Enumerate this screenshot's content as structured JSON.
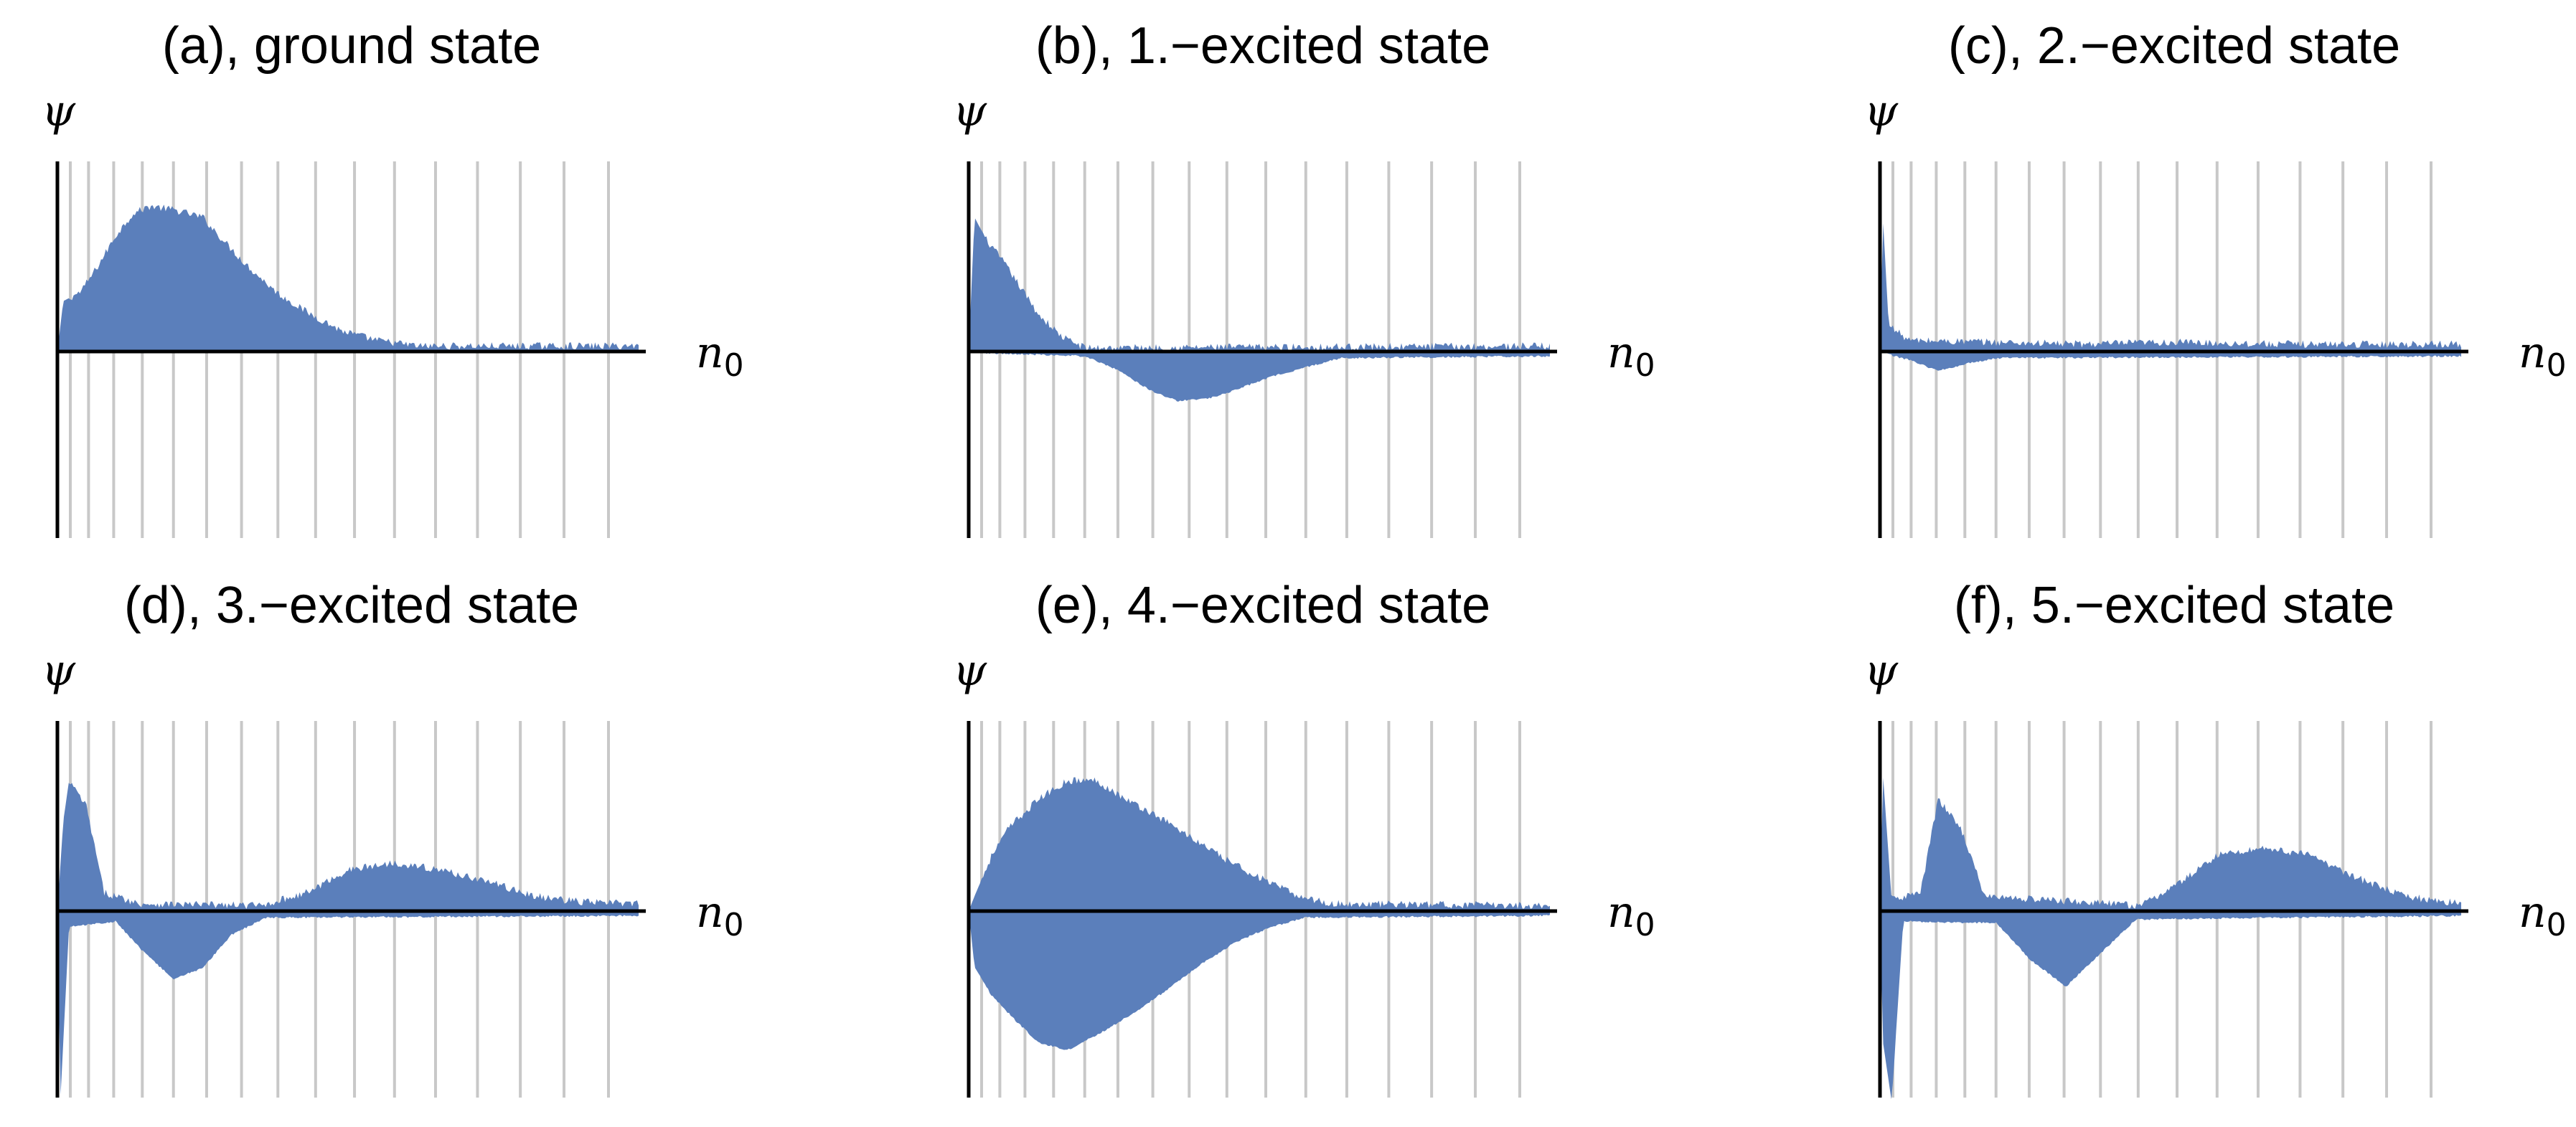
{
  "colors": {
    "fill": "#5b7fbb",
    "gridline": "#c8c8c8",
    "axis": "#000000"
  },
  "chart_data": [
    {
      "type": "area",
      "title": "(a), ground state",
      "ylabel": "ψ",
      "xlabel": "n",
      "xlabel_sub": "0",
      "ylim": [
        -1,
        1
      ],
      "grid_x": true,
      "gridline_count": 16,
      "envelope": {
        "positive": [
          {
            "x": 0.0,
            "y": 0.0
          },
          {
            "x": 0.01,
            "y": 0.27
          },
          {
            "x": 0.04,
            "y": 0.32
          },
          {
            "x": 0.07,
            "y": 0.46
          },
          {
            "x": 0.1,
            "y": 0.62
          },
          {
            "x": 0.13,
            "y": 0.74
          },
          {
            "x": 0.16,
            "y": 0.78
          },
          {
            "x": 0.2,
            "y": 0.76
          },
          {
            "x": 0.25,
            "y": 0.72
          },
          {
            "x": 0.29,
            "y": 0.58
          },
          {
            "x": 0.33,
            "y": 0.45
          },
          {
            "x": 0.38,
            "y": 0.31
          },
          {
            "x": 0.43,
            "y": 0.21
          },
          {
            "x": 0.49,
            "y": 0.11
          },
          {
            "x": 0.55,
            "y": 0.06
          },
          {
            "x": 0.62,
            "y": 0.03
          },
          {
            "x": 1.0,
            "y": 0.03
          }
        ],
        "negative": [
          {
            "x": 0.0,
            "y": 0.0
          },
          {
            "x": 1.0,
            "y": 0.0
          }
        ]
      }
    },
    {
      "type": "area",
      "title": "(b), 1.−excited state",
      "ylabel": "ψ",
      "xlabel": "n",
      "xlabel_sub": "0",
      "ylim": [
        -1,
        1
      ],
      "grid_x": true,
      "gridline_count": 16,
      "envelope": {
        "positive": [
          {
            "x": 0.0,
            "y": 0.0
          },
          {
            "x": 0.01,
            "y": 0.72
          },
          {
            "x": 0.03,
            "y": 0.6
          },
          {
            "x": 0.06,
            "y": 0.48
          },
          {
            "x": 0.09,
            "y": 0.34
          },
          {
            "x": 0.12,
            "y": 0.2
          },
          {
            "x": 0.16,
            "y": 0.08
          },
          {
            "x": 0.2,
            "y": 0.02
          },
          {
            "x": 1.0,
            "y": 0.03
          }
        ],
        "negative": [
          {
            "x": 0.0,
            "y": 0.0
          },
          {
            "x": 0.2,
            "y": -0.02
          },
          {
            "x": 0.26,
            "y": -0.1
          },
          {
            "x": 0.31,
            "y": -0.2
          },
          {
            "x": 0.36,
            "y": -0.26
          },
          {
            "x": 0.41,
            "y": -0.25
          },
          {
            "x": 0.46,
            "y": -0.2
          },
          {
            "x": 0.52,
            "y": -0.13
          },
          {
            "x": 0.58,
            "y": -0.08
          },
          {
            "x": 0.64,
            "y": -0.03
          },
          {
            "x": 1.0,
            "y": -0.02
          }
        ]
      }
    },
    {
      "type": "area",
      "title": "(c), 2.−excited state",
      "ylabel": "ψ",
      "xlabel": "n",
      "xlabel_sub": "0",
      "ylim": [
        -1,
        1
      ],
      "grid_x": true,
      "gridline_count": 16,
      "envelope": {
        "positive": [
          {
            "x": 0.0,
            "y": 0.0
          },
          {
            "x": 0.005,
            "y": 0.72
          },
          {
            "x": 0.015,
            "y": 0.14
          },
          {
            "x": 0.05,
            "y": 0.06
          },
          {
            "x": 0.35,
            "y": 0.04
          },
          {
            "x": 0.5,
            "y": 0.05
          },
          {
            "x": 0.7,
            "y": 0.04
          },
          {
            "x": 1.0,
            "y": 0.04
          }
        ],
        "negative": [
          {
            "x": 0.0,
            "y": 0.0
          },
          {
            "x": 0.05,
            "y": -0.04
          },
          {
            "x": 0.1,
            "y": -0.1
          },
          {
            "x": 0.15,
            "y": -0.06
          },
          {
            "x": 0.2,
            "y": -0.03
          },
          {
            "x": 1.0,
            "y": -0.02
          }
        ]
      }
    },
    {
      "type": "area",
      "title": "(d), 3.−excited state",
      "ylabel": "ψ",
      "xlabel": "n",
      "xlabel_sub": "0",
      "ylim": [
        -1,
        1
      ],
      "grid_x": true,
      "gridline_count": 16,
      "envelope": {
        "positive": [
          {
            "x": 0.0,
            "y": 0.0
          },
          {
            "x": 0.01,
            "y": 0.48
          },
          {
            "x": 0.02,
            "y": 0.7
          },
          {
            "x": 0.05,
            "y": 0.56
          },
          {
            "x": 0.08,
            "y": 0.1
          },
          {
            "x": 0.14,
            "y": 0.04
          },
          {
            "x": 0.35,
            "y": 0.03
          },
          {
            "x": 0.43,
            "y": 0.1
          },
          {
            "x": 0.5,
            "y": 0.22
          },
          {
            "x": 0.58,
            "y": 0.26
          },
          {
            "x": 0.66,
            "y": 0.22
          },
          {
            "x": 0.74,
            "y": 0.16
          },
          {
            "x": 0.82,
            "y": 0.08
          },
          {
            "x": 0.9,
            "y": 0.05
          },
          {
            "x": 1.0,
            "y": 0.04
          }
        ],
        "negative": [
          {
            "x": 0.0,
            "y": 0.0
          },
          {
            "x": 0.005,
            "y": -1.02
          },
          {
            "x": 0.02,
            "y": -0.08
          },
          {
            "x": 0.1,
            "y": -0.05
          },
          {
            "x": 0.15,
            "y": -0.22
          },
          {
            "x": 0.2,
            "y": -0.36
          },
          {
            "x": 0.25,
            "y": -0.3
          },
          {
            "x": 0.3,
            "y": -0.12
          },
          {
            "x": 0.36,
            "y": -0.03
          },
          {
            "x": 1.0,
            "y": -0.02
          }
        ]
      }
    },
    {
      "type": "area",
      "title": "(e), 4.−excited state",
      "ylabel": "ψ",
      "xlabel": "n",
      "xlabel_sub": "0",
      "ylim": [
        -1,
        1
      ],
      "grid_x": true,
      "gridline_count": 16,
      "envelope": {
        "positive": [
          {
            "x": 0.0,
            "y": 0.0
          },
          {
            "x": 0.01,
            "y": 0.08
          },
          {
            "x": 0.04,
            "y": 0.3
          },
          {
            "x": 0.07,
            "y": 0.45
          },
          {
            "x": 0.12,
            "y": 0.6
          },
          {
            "x": 0.17,
            "y": 0.7
          },
          {
            "x": 0.22,
            "y": 0.7
          },
          {
            "x": 0.27,
            "y": 0.6
          },
          {
            "x": 0.33,
            "y": 0.5
          },
          {
            "x": 0.38,
            "y": 0.4
          },
          {
            "x": 0.44,
            "y": 0.28
          },
          {
            "x": 0.5,
            "y": 0.18
          },
          {
            "x": 0.56,
            "y": 0.09
          },
          {
            "x": 0.62,
            "y": 0.04
          },
          {
            "x": 1.0,
            "y": 0.03
          }
        ],
        "negative": [
          {
            "x": 0.0,
            "y": 0.0
          },
          {
            "x": 0.01,
            "y": -0.3
          },
          {
            "x": 0.04,
            "y": -0.45
          },
          {
            "x": 0.08,
            "y": -0.58
          },
          {
            "x": 0.12,
            "y": -0.7
          },
          {
            "x": 0.17,
            "y": -0.74
          },
          {
            "x": 0.22,
            "y": -0.66
          },
          {
            "x": 0.28,
            "y": -0.55
          },
          {
            "x": 0.34,
            "y": -0.42
          },
          {
            "x": 0.4,
            "y": -0.28
          },
          {
            "x": 0.46,
            "y": -0.16
          },
          {
            "x": 0.52,
            "y": -0.08
          },
          {
            "x": 0.58,
            "y": -0.03
          },
          {
            "x": 1.0,
            "y": -0.02
          }
        ]
      }
    },
    {
      "type": "area",
      "title": "(f), 5.−excited state",
      "ylabel": "ψ",
      "xlabel": "n",
      "xlabel_sub": "0",
      "ylim": [
        -1,
        1
      ],
      "grid_x": true,
      "gridline_count": 16,
      "envelope": {
        "positive": [
          {
            "x": 0.0,
            "y": 0.0
          },
          {
            "x": 0.005,
            "y": 0.74
          },
          {
            "x": 0.02,
            "y": 0.06
          },
          {
            "x": 0.07,
            "y": 0.1
          },
          {
            "x": 0.1,
            "y": 0.6
          },
          {
            "x": 0.14,
            "y": 0.44
          },
          {
            "x": 0.18,
            "y": 0.08
          },
          {
            "x": 0.45,
            "y": 0.03
          },
          {
            "x": 0.52,
            "y": 0.16
          },
          {
            "x": 0.58,
            "y": 0.3
          },
          {
            "x": 0.66,
            "y": 0.34
          },
          {
            "x": 0.74,
            "y": 0.3
          },
          {
            "x": 0.82,
            "y": 0.18
          },
          {
            "x": 0.9,
            "y": 0.08
          },
          {
            "x": 1.0,
            "y": 0.04
          }
        ],
        "negative": [
          {
            "x": 0.0,
            "y": 0.0
          },
          {
            "x": 0.005,
            "y": -0.7
          },
          {
            "x": 0.02,
            "y": -1.02
          },
          {
            "x": 0.04,
            "y": -0.05
          },
          {
            "x": 0.2,
            "y": -0.06
          },
          {
            "x": 0.26,
            "y": -0.26
          },
          {
            "x": 0.32,
            "y": -0.4
          },
          {
            "x": 0.38,
            "y": -0.22
          },
          {
            "x": 0.44,
            "y": -0.04
          },
          {
            "x": 1.0,
            "y": -0.02
          }
        ]
      }
    }
  ]
}
